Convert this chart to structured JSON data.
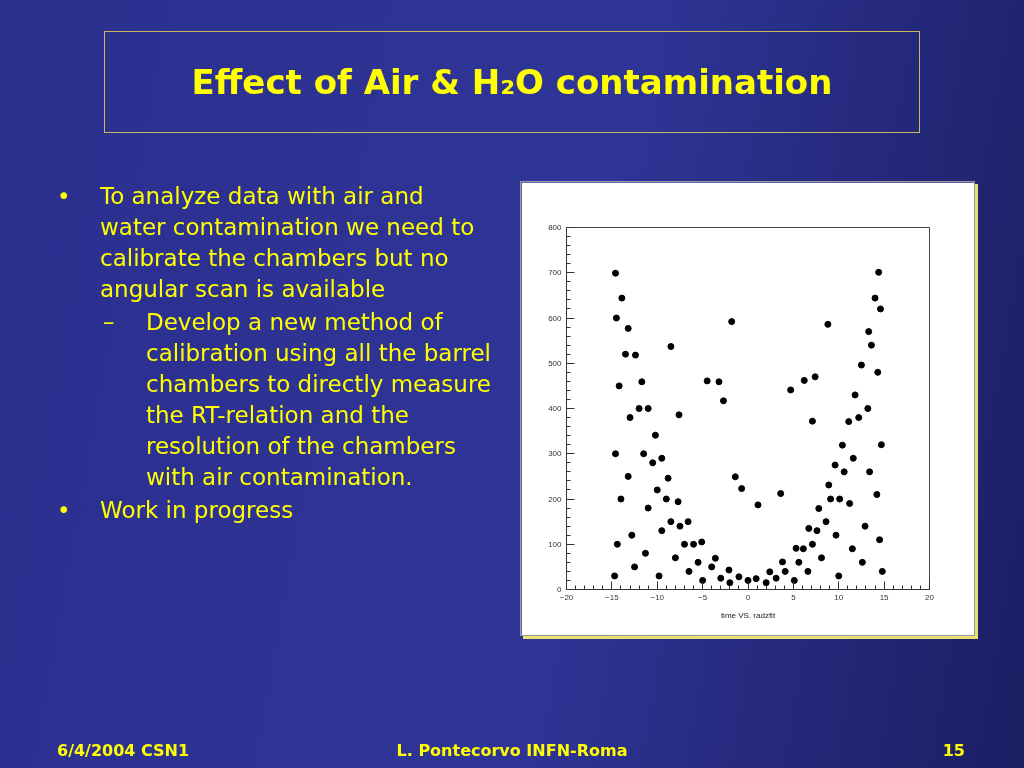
{
  "chart_data": {
    "type": "scatter",
    "title": "Effect of Air & H₂O contamination",
    "xlabel": "time VS. radzfit",
    "annotations": [
      "• To analyze data with air and water contamination we need to calibrate the chambers but no angular scan is available",
      "– Develop a new method of calibration using all the barrel chambers to directly measure the RT-relation and the resolution of the chambers with air contamination.",
      "• Work in progress",
      "6/4/2004 CSN1",
      "L. Pontecorvo INFN-Roma",
      "15"
    ],
    "xlim": [
      -20,
      20
    ],
    "ylim": [
      0,
      800
    ],
    "xticks": [
      -20,
      -15,
      -10,
      -5,
      0,
      5,
      10,
      15,
      20
    ],
    "yticks": [
      0,
      100,
      200,
      300,
      400,
      500,
      600,
      700,
      800
    ],
    "grid": false,
    "marker": "circle",
    "series": [
      {
        "color": "#000000",
        "x": [
          -14.6,
          -13.9,
          -13.2,
          -12.4,
          -11.7,
          -11.0,
          -10.2,
          -9.5,
          -8.8,
          -7.7,
          -6.6,
          -5.1,
          -3.6,
          -2.1,
          -1.0,
          0.0,
          0.9,
          2.4,
          3.8,
          5.3,
          6.7,
          7.8,
          8.9,
          9.6,
          10.4,
          11.1,
          11.8,
          12.5,
          13.3,
          14.0,
          14.4
        ],
        "values": [
          699,
          644,
          577,
          518,
          459,
          400,
          341,
          290,
          246,
          194,
          150,
          105,
          69,
          43,
          28,
          20,
          24,
          39,
          61,
          91,
          135,
          179,
          231,
          275,
          319,
          371,
          430,
          496,
          570,
          644,
          701
        ]
      },
      {
        "color": "#000000",
        "x": [
          -14.5,
          -14.2,
          -14.6,
          -14.0,
          -14.4,
          -14.7,
          -13.5,
          -13.0,
          -13.2,
          -12.8,
          -12.5,
          -12.0,
          -11.5,
          -11.0,
          -11.3,
          -10.5,
          -10.0,
          -9.5,
          -9.8,
          -9.0,
          -8.5,
          -8.0,
          -7.5,
          -7.0,
          -6.5,
          -6.0,
          -5.5,
          -5.0,
          -4.0,
          -3.0,
          -2.0
        ],
        "values": [
          600,
          450,
          300,
          200,
          100,
          30,
          520,
          380,
          250,
          120,
          50,
          400,
          300,
          180,
          80,
          280,
          220,
          130,
          30,
          200,
          150,
          70,
          140,
          100,
          40,
          100,
          60,
          20,
          50,
          25,
          15
        ]
      },
      {
        "color": "#000000",
        "x": [
          14.6,
          14.3,
          14.7,
          14.2,
          14.5,
          14.8,
          13.6,
          13.2,
          13.4,
          12.9,
          12.6,
          12.2,
          11.6,
          11.2,
          11.5,
          10.6,
          10.1,
          9.7,
          10.0,
          9.1,
          8.6,
          8.1,
          7.6,
          7.1,
          6.6,
          6.1,
          5.6,
          5.1,
          4.1,
          3.1,
          2.0
        ],
        "values": [
          620,
          480,
          320,
          210,
          110,
          40,
          540,
          400,
          260,
          140,
          60,
          380,
          290,
          190,
          90,
          260,
          200,
          120,
          30,
          200,
          150,
          70,
          130,
          100,
          40,
          90,
          60,
          20,
          40,
          25,
          15
        ]
      },
      {
        "color": "#000000",
        "x": [
          -1.8,
          -4.5,
          -3.2,
          -2.7,
          -8.5,
          -7.6,
          -1.4,
          -0.7,
          8.8,
          6.2,
          7.4,
          4.7,
          7.1,
          1.1,
          3.6
        ],
        "values": [
          592,
          461,
          459,
          417,
          537,
          386,
          249,
          223,
          586,
          462,
          470,
          441,
          372,
          187,
          212
        ]
      }
    ]
  }
}
